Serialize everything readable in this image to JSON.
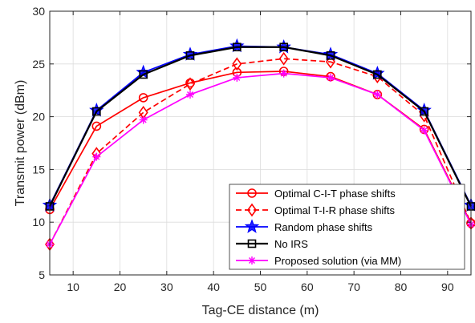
{
  "chart_data": {
    "type": "line",
    "title": "",
    "xlabel": "Tag-CE distance (m)",
    "ylabel": "Transmit power (dBm)",
    "xlim": [
      5,
      95
    ],
    "ylim": [
      5,
      30
    ],
    "xticks": [
      10,
      20,
      30,
      40,
      50,
      60,
      70,
      80,
      90
    ],
    "yticks": [
      5,
      10,
      15,
      20,
      25,
      30
    ],
    "grid": true,
    "legend_position": "bottom-right",
    "x": [
      5,
      15,
      25,
      35,
      45,
      55,
      65,
      75,
      85,
      95
    ],
    "series": [
      {
        "name": "Optimal C-I-T phase shifts",
        "color": "#ff0000",
        "dash": "solid",
        "marker": "circle",
        "values": [
          11.2,
          19.1,
          21.8,
          23.2,
          24.2,
          24.3,
          23.8,
          22.1,
          18.8,
          9.9
        ]
      },
      {
        "name": "Optimal T-I-R phase shifts",
        "color": "#ff0000",
        "dash": "dashed",
        "marker": "diamond",
        "values": [
          7.9,
          16.5,
          20.4,
          23.1,
          25.0,
          25.5,
          25.2,
          23.8,
          20.1,
          9.9
        ]
      },
      {
        "name": "Random phase shifts",
        "color": "#0000ff",
        "dash": "solid",
        "marker": "star",
        "values": [
          11.6,
          20.6,
          24.2,
          25.9,
          26.7,
          26.6,
          25.9,
          24.1,
          20.6,
          11.6
        ]
      },
      {
        "name": "No IRS",
        "color": "#000000",
        "dash": "solid",
        "marker": "square",
        "values": [
          11.5,
          20.5,
          24.0,
          25.8,
          26.6,
          26.6,
          25.8,
          24.0,
          20.5,
          11.5
        ]
      },
      {
        "name": "Proposed solution (via MM)",
        "color": "#ff00ff",
        "dash": "solid",
        "marker": "asterisk",
        "values": [
          7.9,
          16.2,
          19.7,
          22.1,
          23.7,
          24.1,
          23.7,
          22.1,
          18.7,
          9.8
        ]
      }
    ]
  }
}
